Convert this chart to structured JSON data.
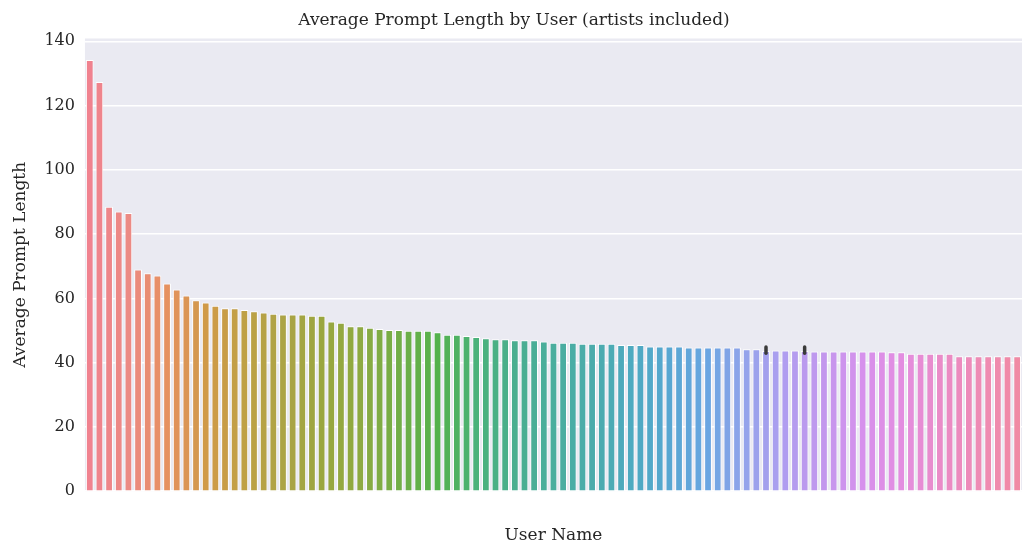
{
  "chart_data": {
    "type": "bar",
    "title": "Average Prompt Length by User (artists included)",
    "xlabel": "User Name",
    "ylabel": "Average Prompt Length",
    "categories": [
      null,
      null,
      null,
      null,
      null,
      null,
      null,
      null,
      null,
      null,
      null,
      null,
      null,
      null,
      null,
      null,
      null,
      null,
      null,
      null,
      null,
      null,
      null,
      null,
      null,
      null,
      null,
      null,
      null,
      null,
      null,
      null,
      null,
      null,
      null,
      null,
      null,
      null,
      null,
      null,
      null,
      null,
      null,
      null,
      null,
      null,
      null,
      null,
      null,
      null,
      null,
      null,
      null,
      null,
      null,
      null,
      null,
      null,
      null,
      null,
      null,
      null,
      null,
      null,
      null,
      null,
      null,
      null,
      null,
      null,
      null,
      null,
      null,
      null,
      null,
      null,
      null,
      null,
      null,
      null,
      null,
      null,
      null,
      null,
      null,
      null,
      null,
      null,
      null,
      null,
      null,
      null,
      null,
      null,
      null,
      null,
      null
    ],
    "values": [
      134.2,
      127.3,
      88.5,
      87.0,
      86.6,
      69.0,
      67.8,
      67.1,
      64.6,
      62.8,
      60.9,
      59.4,
      58.7,
      57.7,
      56.9,
      56.9,
      56.4,
      56.0,
      55.6,
      55.2,
      55.0,
      55.0,
      55.0,
      54.6,
      54.6,
      52.8,
      52.4,
      51.3,
      51.3,
      50.9,
      50.5,
      50.2,
      50.2,
      49.9,
      49.9,
      49.9,
      49.5,
      48.7,
      48.7,
      48.3,
      48.0,
      47.6,
      47.3,
      47.3,
      47.0,
      47.0,
      47.0,
      46.6,
      46.2,
      46.2,
      46.2,
      45.9,
      45.9,
      45.9,
      45.9,
      45.5,
      45.5,
      45.5,
      45.0,
      45.0,
      45.0,
      45.0,
      44.7,
      44.7,
      44.7,
      44.7,
      44.7,
      44.7,
      44.2,
      44.2,
      43.6,
      43.8,
      43.8,
      43.8,
      43.6,
      43.5,
      43.5,
      43.5,
      43.5,
      43.5,
      43.5,
      43.5,
      43.5,
      43.2,
      43.2,
      42.8,
      42.8,
      42.8,
      42.8,
      42.8,
      42.0,
      42.0,
      42.0,
      42.0,
      42.0,
      42.0,
      42.0
    ],
    "errors": [
      null,
      null,
      null,
      null,
      null,
      null,
      null,
      null,
      null,
      null,
      null,
      null,
      null,
      null,
      null,
      null,
      null,
      null,
      null,
      null,
      null,
      null,
      null,
      null,
      null,
      null,
      null,
      null,
      null,
      null,
      null,
      null,
      null,
      null,
      null,
      null,
      null,
      null,
      null,
      null,
      null,
      null,
      null,
      null,
      null,
      null,
      null,
      null,
      null,
      null,
      null,
      null,
      null,
      null,
      null,
      null,
      null,
      null,
      null,
      null,
      null,
      null,
      null,
      null,
      null,
      null,
      null,
      null,
      null,
      null,
      [
        42.9,
        44.9
      ],
      null,
      null,
      null,
      [
        42.9,
        44.9
      ],
      null,
      null,
      null,
      null,
      null,
      null,
      null,
      null,
      null,
      null,
      null,
      null,
      null,
      null,
      null,
      null,
      null,
      null,
      null,
      null,
      null,
      null
    ],
    "colors": [
      "#f0828f",
      "#ef848c",
      "#ee8689",
      "#ed8886",
      "#ec8a84",
      "#eb8b7b",
      "#e98d72",
      "#e88f68",
      "#e6915f",
      "#e0935a",
      "#db9554",
      "#d59850",
      "#d09a48",
      "#cc9c48",
      "#c89d47",
      "#c39f47",
      "#bfa146",
      "#bba246",
      "#b6a246",
      "#b1a346",
      "#aca446",
      "#a8a444",
      "#a3a543",
      "#9fa541",
      "#9aa63f",
      "#97a740",
      "#94a841",
      "#91a941",
      "#8eaa42",
      "#87ab43",
      "#80ac45",
      "#79ad46",
      "#72ae48",
      "#6baf49",
      "#63b04a",
      "#5cb14b",
      "#54b24c",
      "#52b257",
      "#4fb263",
      "#4db26e",
      "#4ab27a",
      "#4ab17f",
      "#4ab085",
      "#4aaf8a",
      "#4aae8f",
      "#4aae93",
      "#4aae97",
      "#4aae9a",
      "#4aae9e",
      "#4aada1",
      "#4aada5",
      "#4baca8",
      "#4babab",
      "#4cabb0",
      "#4cabb5",
      "#4daabb",
      "#4eaac0",
      "#50a9c4",
      "#53a9c9",
      "#55a8cd",
      "#58a7d2",
      "#5ca7d6",
      "#61a6da",
      "#65a6de",
      "#6aa5e2",
      "#75a5e4",
      "#80a4e6",
      "#8aa4e9",
      "#95a3eb",
      "#9ca2ec",
      "#a3a0ed",
      "#a99fef",
      "#b09df0",
      "#b59cef",
      "#ba9aee",
      "#be99ee",
      "#c397ed",
      "#c896ed",
      "#cd94ed",
      "#d193ec",
      "#d691ec",
      "#d990e9",
      "#dd8fe6",
      "#e08ee3",
      "#e38de0",
      "#e58dda",
      "#e78cd4",
      "#e88cce",
      "#ea8bc8",
      "#eb8bc3",
      "#ec8bbe",
      "#ed8bba",
      "#ee8bb5",
      "#ef8bb1",
      "#ef8bad",
      "#f08aa8",
      "#f08aa4"
    ],
    "ylim": [
      0,
      140.9
    ],
    "yticks": [
      0,
      20,
      40,
      60,
      80,
      100,
      120,
      140
    ],
    "grid": "y"
  }
}
